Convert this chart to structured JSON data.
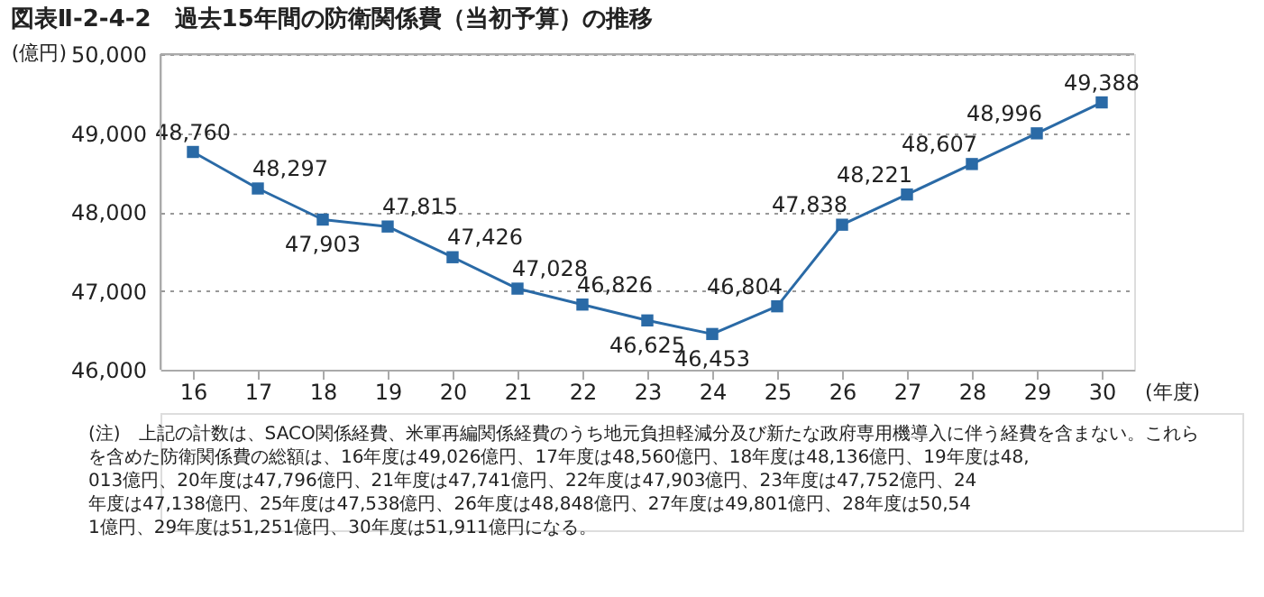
{
  "chart_data": {
    "type": "line",
    "title": "図表Ⅱ-2-4-2　過去15年間の防衛関係費（当初予算）の推移",
    "ylabel": "(億円)",
    "xlabel": "(年度)",
    "categories": [
      "16",
      "17",
      "18",
      "19",
      "20",
      "21",
      "22",
      "23",
      "24",
      "25",
      "26",
      "27",
      "28",
      "29",
      "30"
    ],
    "series": [
      {
        "color": "#2a6aa6",
        "values": [
          48760,
          48297,
          47903,
          47815,
          47426,
          47028,
          46826,
          46625,
          46453,
          46804,
          47838,
          48221,
          48607,
          48996,
          49388
        ],
        "value_labels": [
          "48,760",
          "48,297",
          "47,903",
          "47,815",
          "47,426",
          "47,028",
          "46,826",
          "46,625",
          "46,453",
          "46,804",
          "47,838",
          "48,221",
          "48,607",
          "48,996",
          "49,388"
        ]
      }
    ],
    "ylim": [
      46000,
      50000
    ],
    "yticks": [
      {
        "value": 46000,
        "label": "46,000"
      },
      {
        "value": 47000,
        "label": "47,000"
      },
      {
        "value": 48000,
        "label": "48,000"
      },
      {
        "value": 49000,
        "label": "49,000"
      },
      {
        "value": 50000,
        "label": "50,000"
      }
    ],
    "grid": "y",
    "marker": "square",
    "line_style": "solid",
    "annotations": [
      "(注)　上記の計数は、SACO関係経費、米軍再編関係経費のうち地元負担軽減分及び新たな政府専用機導入に伴う経費を含まない。これらを含めた防衛関係費の総額は、16年度は49,026億円、17年度は48,560億円、18年度は48,136億円、19年度は48,013億円、20年度は47,796億円、21年度は47,741億円、22年度は47,903億円、23年度は47,752億円、24年度は47,138億円、25年度は47,538億円、26年度は48,848億円、27年度は49,801億円、28年度は50,541億円、29年度は51,251億円、30年度は51,911億円になる。"
    ]
  }
}
